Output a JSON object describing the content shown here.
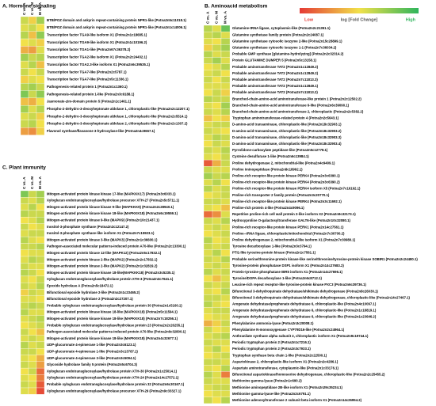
{
  "chart_data": [
    {
      "type": "heatmap",
      "title": "A. Hormone signaling",
      "columns": [
        "C vs. A",
        "C vs. M",
        "M vs. A"
      ],
      "colors": [
        "#e53a35",
        "#f1e14a",
        "#2fb55c"
      ],
      "zlim": [
        -1,
        1
      ],
      "rows": [
        "BTB/POZ domain and ankyrin repeat-containing protein NPR1-like (Potna2n5c11018.1)",
        "BTB/POZ domain and ankyrin repeat-containing protein NPR1-like (Potna2n1c14006.1)",
        "Transcription factor TGA9-like isoform X1 (Potna2n1c18685.1)",
        "Transcription factor TGA9-like isoform X1 (Potna2n1c10196.2)",
        "Transcription factor TGA1-like (Potna2n67c36378.2)",
        "Transcription factor TGA2-like isoform X1 (Potna2n2c24432.1)",
        "Transcription factor TGA2.3-like isoform X1 (Potna2n6c39535.1)",
        "Transcription factor TGA7-like (Potna2n2c5787.1)",
        "Transcription factor TGA7-like (Potna2n5c11336.1)",
        "Pathogenesis-related protein 1 (Potna2n1c1360.1)",
        "Pathogenesis-related protein 1-like (Potna2n3c9188.1)",
        "Jasmonate-zim-domain protein 5 (Potna2n1c1461.1)",
        "Phospho-2-dehydro-3-deoxyheptonate aldolase 1, chloroplastic-like (Potna2n2c12207.1)",
        "Phospho-2-dehydro-3-deoxyheptonate aldolase 1, chloroplastic-like (Potna2n2c5514.1)",
        "Phospho-2-dehydro-3-deoxyheptonate aldolase 2, chloroplastic-like (Potna2n2c1307.2)",
        "Flavonol synthase/flavanone 3-hydroxylase-like (Potna2n4c9667.1)"
      ],
      "values": [
        [
          0.2,
          -0.1,
          0.4
        ],
        [
          0.1,
          0.2,
          0.0
        ],
        [
          0.3,
          -0.2,
          0.5
        ],
        [
          0.0,
          0.1,
          -0.1
        ],
        [
          -0.3,
          -0.4,
          0.1
        ],
        [
          0.4,
          0.2,
          0.3
        ],
        [
          0.1,
          0.3,
          -0.2
        ],
        [
          0.2,
          0.0,
          0.2
        ],
        [
          -0.1,
          0.1,
          0.0
        ],
        [
          0.3,
          0.4,
          0.2
        ],
        [
          0.6,
          0.2,
          0.5
        ],
        [
          -0.2,
          -0.3,
          0.0
        ],
        [
          0.4,
          0.1,
          0.3
        ],
        [
          0.1,
          0.2,
          -0.1
        ],
        [
          0.2,
          0.3,
          0.0
        ],
        [
          -0.4,
          -0.5,
          -0.1
        ]
      ]
    },
    {
      "type": "heatmap",
      "title": "B. Aminoacid metabolism",
      "columns": [
        "C vs. A",
        "C vs. M",
        "M vs. A"
      ],
      "colors": [
        "#e53a35",
        "#f1e14a",
        "#2fb55c"
      ],
      "zlim": [
        -1,
        1
      ],
      "legend": {
        "low": "Low",
        "title": "log [Fold Change]",
        "high": "High"
      },
      "rows": [
        "Glutamine-tRNA ligase, cytoplasmic-like (Potna2n2c21351.1)",
        "Glutamine synthetase family protein (Potna2n2c24087.1)",
        "Glutamine synthetase cytosolic isozyme 2-like (Potna2n15c28899.1)",
        "Glutamine synthetase cytosolic isozyme 1-1 (Potna2n7c36034.2)",
        "Probable GMP synthase [glutamine-hydrolyzing] (Potna2n2c32314.2)",
        "Protein GLUTAMINE DUMPER 5 (Potna2n5c13158.1)",
        "Probable aminotransferase TAT2 (Potna2n1c12849.2)",
        "Probable aminotransferase TAT2 (Potna2n1c12849.2)",
        "Probable aminotransferase TAT2 (Potna2n7c11813.3)",
        "Probable aminotransferase TAT2 (Potna2n1c12849.1)",
        "Probable aminotransferase TAT2 (Potna2n7c11813.2)",
        "Branched-chain-amino-acid aminotransferase-like protein 1 (Potna2n2c12502.2)",
        "Branched-chain-amino-acid aminotransferase 6-like (Potna2n6c39090.1)",
        "Branched-chain-amino-acid aminotransferase 2, chloroplastic (Potna2n2c5382.2)",
        "Tryptophan aminotransferase-related protein 4 (Potna2n2c5643.1)",
        "D-amino-acid transaminase, chloroplastic-like (Potna2n18c32903.1)",
        "D-amino-acid transaminase, chloroplastic-like (Potna2n18c32903.2)",
        "D-amino-acid transaminase, chloroplastic-like (Potna2n18c32903.3)",
        "D-amino-acid transaminase, chloroplastic-like (Potna2n18c32903.4)",
        "Pyrrolidone-carboxylate peptidase-like (Potna2n5c12778.1)",
        "Cysteine desulfurase 1-like (Potna2n6c13984.1)",
        "Proline dehydrogenase 2, mitochondrial-like (Potna2n4c9409.1)",
        "Proline iminopeptidase (Potna2n8c18992.1)",
        "Proline-rich receptor-like protein kinase PERK4 (Potna2n3c6390.1)",
        "Proline-rich receptor-like protein kinase PERK4 (Potna2n3c6390.2)",
        "Proline-rich receptor-like protein kinase PERK4 isoform X5 (Potna2n7c16192.1)",
        "Proline-rich transporter 2 family protein (Potna2n3c20770.1)",
        "Proline-rich receptor-like protein kinase PERK4 (Potna2n3c11692.1)",
        "Proline-rich protein 4-like (Potna2n4c9096.1)",
        "Repetitive proline-rich cell wall protein 2-like isoform X2 (Potna2n9c32173.1)",
        "Hydroxyproline O-galactosyltransferase GALT6-like (Potna2n10c32080.1)",
        "Proline-rich receptor-like protein kinase PERK1 (Potna2n14c27561.1)",
        "Proline--tRNA ligase, chloroplastic/mitochondrial (Potna2n7c30700.2)",
        "Proline dehydrogenase 2, mitochondrial-like isoform X1 (Potna2n7c30980.1)",
        "Tyrosine decarboxylase 1-like (Potna2n3c3794.1)",
        "PTI1-like tyrosine-protein kinase (Potna2n1c7561.1)",
        "Probable serine/threonine-protein kinase-like serine/threonine/tyrosine-protein kinase SOBIR1 (Potna2n2c24480.1)",
        "Tyrosine-protein phosphatase DSP1 isoform X1 (Potna2n14c27683.2)",
        "Protein-tyrosine-phosphatase IBR5 isoform X1 (Potna2n14c27696.1)",
        "Tyrosine/DOPA decarboxylase 1-like (Potna2n6c8712.1)",
        "Leucine-rich repeat receptor-like tyrosine-protein kinase PXC3 (Potna2n6c39736.1)",
        "Bifunctional 3-dehydroquinate dehydratase/shikimate dehydrogenase (Potna2n8c26030.1)",
        "Bifunctional 3-dehydroquinate dehydratase/shikimate dehydrogenase, chloroplastic-like (Potna2n14c27467.1)",
        "Arogenate dehydratase/prephenate dehydratase 6, chloroplastic-like (Potna2n4c10097.1)",
        "Arogenate dehydratase/prephenate dehydratase 6, chloroplastic-like (Potna2n1c18819.1)",
        "Arogenate dehydratase/prephenate dehydratase 6, chloroplastic-like (Potna2n1c23646.2)",
        "Phenylalanine ammonia-lyase (Potna2n3c20008.1)",
        "Phenylalanine N-monooxygenase CYP79D16-like (Potna2n2c24964.1)",
        "Anthranilate synthase alpha subunit 2, chloroplastic isoform X1 (Potna2n9c19744.1)",
        "Periodic tryptophan protein 2 (Potna2n1c7216.1)",
        "Periodic tryptophan protein 2 (Potna2n3c7933.1)",
        "Tryptophan synthase beta chain 1-like (Potna2n2c22500.1)",
        "Aspartokinase 2, chloroplastic-like isoform X1 (Potna2n2c4286.1)",
        "Aspartate aminotransferase, cytoplasmic-like (Potna2n1c33176.1)",
        "Bifunctional aspartokinase/homoserine dehydrogenase, chloroplastic-like (Potna2n2c25455.2)",
        "Methionine gamma-lyase (Potna2n1c690.2)",
        "Methionine aminopeptidase 2B-like isoform X1 (Potna2n29c35234.1)",
        "Methionine gamma-lyase-like (Potna2n2c6791.1)",
        "Methionine adenosyltransferase 2 subunit beta isoform X1 (Potna2n14c26954.2)"
      ],
      "values": [
        [
          0.3,
          0.1,
          0.7
        ],
        [
          0.2,
          0.3,
          0.1
        ],
        [
          0.1,
          0.0,
          0.3
        ],
        [
          -0.1,
          0.2,
          0.4
        ],
        [
          0.3,
          0.1,
          0.2
        ],
        [
          0.2,
          0.4,
          0.1
        ],
        [
          0.0,
          0.1,
          0.3
        ],
        [
          0.1,
          0.2,
          0.0
        ],
        [
          0.2,
          0.0,
          0.2
        ],
        [
          0.1,
          0.1,
          0.1
        ],
        [
          0.0,
          0.2,
          -0.1
        ],
        [
          0.3,
          0.2,
          0.2
        ],
        [
          0.1,
          0.0,
          0.4
        ],
        [
          0.2,
          0.1,
          0.3
        ],
        [
          -0.2,
          0.0,
          -0.1
        ],
        [
          0.1,
          0.2,
          0.2
        ],
        [
          0.2,
          0.1,
          0.0
        ],
        [
          0.1,
          0.3,
          0.2
        ],
        [
          0.0,
          0.2,
          0.1
        ],
        [
          0.2,
          0.1,
          0.3
        ],
        [
          0.1,
          0.0,
          0.2
        ],
        [
          -0.8,
          -0.3,
          0.2
        ],
        [
          0.2,
          0.1,
          0.1
        ],
        [
          0.4,
          0.2,
          0.3
        ],
        [
          0.1,
          0.3,
          0.0
        ],
        [
          0.3,
          0.1,
          0.2
        ],
        [
          0.0,
          0.1,
          0.2
        ],
        [
          0.2,
          0.2,
          0.1
        ],
        [
          0.1,
          0.0,
          -0.2
        ],
        [
          -0.7,
          -0.5,
          0.1
        ],
        [
          0.2,
          0.1,
          0.3
        ],
        [
          0.1,
          0.2,
          0.1
        ],
        [
          0.0,
          0.1,
          0.2
        ],
        [
          0.3,
          0.0,
          0.1
        ],
        [
          0.2,
          0.1,
          0.2
        ],
        [
          0.1,
          0.3,
          0.0
        ],
        [
          0.2,
          0.1,
          0.3
        ],
        [
          0.1,
          0.2,
          0.1
        ],
        [
          0.3,
          0.1,
          0.2
        ],
        [
          0.0,
          -0.2,
          0.1
        ],
        [
          0.2,
          0.1,
          0.2
        ],
        [
          0.1,
          0.0,
          0.3
        ],
        [
          0.2,
          0.2,
          0.1
        ],
        [
          0.3,
          0.1,
          0.0
        ],
        [
          0.1,
          0.2,
          0.2
        ],
        [
          0.0,
          0.1,
          0.1
        ],
        [
          -0.3,
          -0.1,
          0.2
        ],
        [
          0.2,
          0.0,
          0.1
        ],
        [
          0.1,
          0.2,
          0.3
        ],
        [
          0.2,
          0.1,
          0.1
        ],
        [
          0.1,
          0.3,
          0.0
        ],
        [
          0.0,
          0.1,
          0.2
        ],
        [
          0.2,
          0.2,
          0.1
        ],
        [
          0.1,
          0.0,
          0.3
        ],
        [
          0.3,
          0.1,
          -0.6
        ],
        [
          0.2,
          0.1,
          0.1
        ],
        [
          0.1,
          0.2,
          0.2
        ],
        [
          0.0,
          0.1,
          0.1
        ],
        [
          0.2,
          0.0,
          0.3
        ]
      ]
    },
    {
      "type": "heatmap",
      "title": "C. Plant immunity",
      "columns": [
        "C vs. A",
        "C vs. M",
        "M vs. A"
      ],
      "colors": [
        "#e53a35",
        "#f1e14a",
        "#2fb55c"
      ],
      "zlim": [
        -1,
        1
      ],
      "rows": [
        "Mitogen-activated protein kinase kinase 17-like (MAPKKK17) (Potna2n3c6033.1)",
        "Xyloglucan endotransglucosylase/hydrolase precursor XTH-27 (Potna2n5c5711.1)",
        "Mitogen-activated protein kinase kinase 9-like (MAPKKK9) (Potna2n2c28940.1)",
        "Mitogen-activated protein kinase kinase 18-like (MAPKKK18) (Potna2n6c19559.1)",
        "Mitogen-activated protein kinase 9-like (MAPK9) (Potna2n10c21437.1)",
        "Inositol-3-phosphate synthase (Potna2n2c12147.2)",
        "Inositol-3-phosphate synthase-like isoform X1 (Potna2n7c15923.1)",
        "Mitogen-activated protein kinase 3-like (MAPK3) (Potna2n1c36600.1)",
        "Pathogen-associated molecular patterns-induced protein A70-like (Potna2n2c13300.1)",
        "Mitogen-activated protein kinase 12-like (MAPK12) (Potna2n5c17832.1)",
        "Mitogen-activated protein kinase 2-like (MAPK2) (Potna2n2c17832.1)",
        "Mitogen-activated protein kinase 2-like (MAPK2) (Potna2n1c32819.2)",
        "Mitogen-activated protein kinase kinase 18-like(MAPKKK18) (Potna2n3c5235.1)",
        "Xyloglucan endotransglucosylase/hydrolase protein XTH-3 (Potna2n3c7641.1)",
        "Epoxide hydrolase A (Potna2n5c18472.1)",
        "Bifunctional epoxide hydrolase 2-like (Potna2n1c23465.2)",
        "Bifunctional epoxide hydrolase 2 (Potna2n2c27207.1)",
        "Probable xyloglucan endotransglucosylase/hydrolase protein 30 (Potna2n1c5160.1)",
        "Mitogen-activated protein kinase kinase 18-like (MAPKKK18) (Potna2n5c11594.1)",
        "Mitogen-activated protein kinase kinase 18-like (MAPKKK18) (Potna2n7c18256.1)",
        "Probable xyloglucan endotransglucosylase/hydrolase protein 23 (Potna2n2c26255.1)",
        "Pathogen-associated molecular patterns-induced protein A70-like (Potna2n6c32800.1)",
        "Mitogen-activated protein kinase kinase 18-like (MAPKKK18) (Potna2n4c32677.1)",
        "UDP-glucuronate 4-epimerase 1-like (Potna2n3c6123.1)",
        "UDP-glucuronate 4-epimerase 1-like (Potna2n3c13787.1)",
        "UDP-glucuronate 4-epimerase 3-like (Potna2n3c5094.1)",
        "Glycoside hydrolase family 5 protein (Potna2n5c6704.3)",
        "Xyloglucan endotransglucosylase/hydrolase protein XTH-30 (Potna2n1c25014.1)",
        "Xyloglucan endotransglucosylase/hydrolase protein XTH-24 (Potna2n14c27572.1)",
        "Probable xyloglucan endotransglucosylase/hydrolase protein 32 (Potna2n6c30167.1)",
        "Xyloglucan endotransglucosylase/hydrolase precursor XTH-29 (Potna2n9c33327.1)"
      ],
      "values": [
        [
          0.6,
          0.2,
          0.4
        ],
        [
          0.2,
          0.1,
          0.3
        ],
        [
          0.1,
          0.3,
          0.0
        ],
        [
          0.3,
          0.2,
          0.2
        ],
        [
          0.0,
          0.1,
          0.3
        ],
        [
          0.2,
          0.0,
          0.1
        ],
        [
          0.1,
          0.2,
          0.2
        ],
        [
          0.3,
          0.1,
          0.0
        ],
        [
          0.2,
          0.2,
          0.3
        ],
        [
          0.0,
          0.1,
          0.1
        ],
        [
          0.1,
          0.3,
          0.2
        ],
        [
          0.2,
          0.1,
          0.1
        ],
        [
          0.3,
          0.2,
          0.0
        ],
        [
          0.1,
          0.0,
          0.2
        ],
        [
          0.2,
          0.1,
          0.3
        ],
        [
          -0.1,
          0.2,
          0.1
        ],
        [
          0.1,
          0.1,
          0.0
        ],
        [
          0.2,
          0.3,
          0.2
        ],
        [
          0.3,
          0.1,
          0.1
        ],
        [
          0.1,
          0.2,
          0.3
        ],
        [
          0.0,
          0.1,
          0.2
        ],
        [
          0.2,
          0.0,
          -0.2
        ],
        [
          0.1,
          0.2,
          0.1
        ],
        [
          0.3,
          0.1,
          0.2
        ],
        [
          0.2,
          0.2,
          0.0
        ],
        [
          0.1,
          0.0,
          -0.3
        ],
        [
          0.2,
          0.1,
          -0.4
        ],
        [
          0.0,
          0.2,
          -0.7
        ],
        [
          0.1,
          0.0,
          -0.6
        ],
        [
          0.2,
          0.1,
          -0.8
        ],
        [
          0.1,
          -0.1,
          -0.9
        ]
      ]
    }
  ]
}
